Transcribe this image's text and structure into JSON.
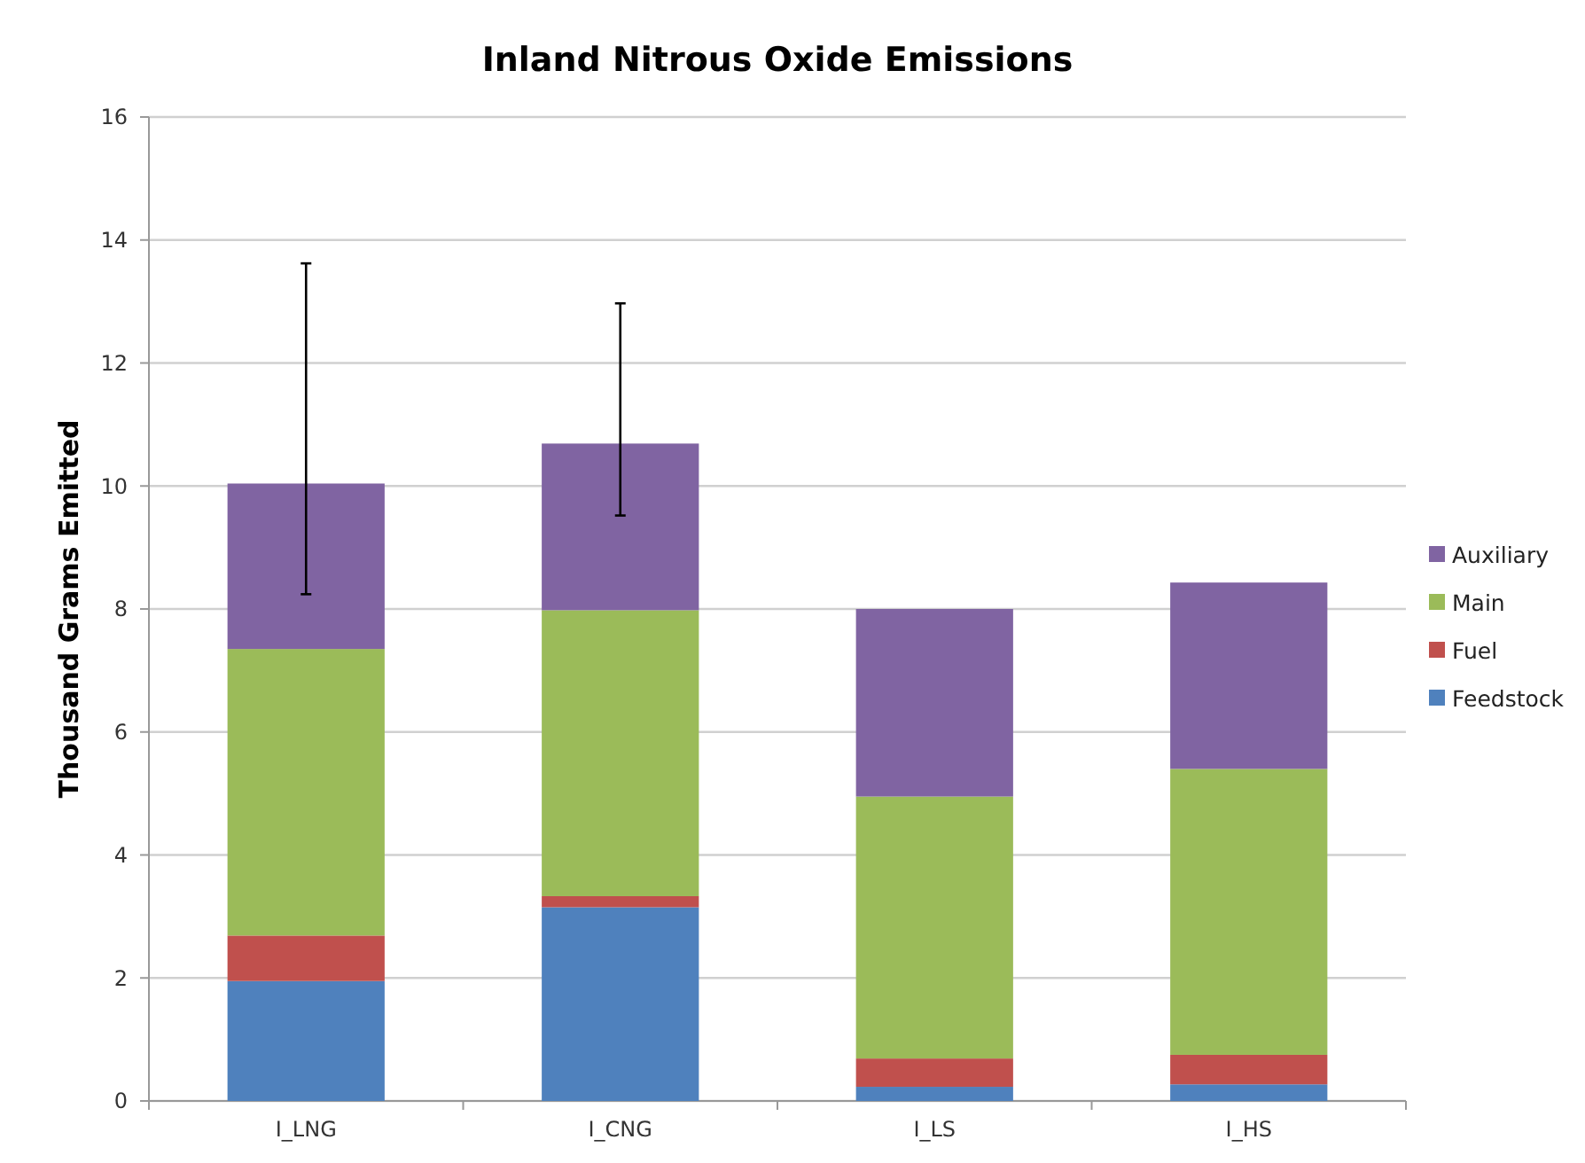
{
  "chart_data": {
    "type": "bar",
    "title": "Inland Nitrous Oxide Emissions",
    "ylabel": "Thousand Grams Emitted",
    "categories": [
      "I_LNG",
      "I_CNG",
      "I_LS",
      "I_HS"
    ],
    "stacked": true,
    "ylim": [
      0,
      16
    ],
    "yticks": [
      0,
      2,
      4,
      6,
      8,
      10,
      12,
      14,
      16
    ],
    "grid": "y",
    "legend": "right",
    "series": [
      {
        "name": "Feedstock",
        "color": "#4f81bd",
        "values": [
          1.95,
          3.15,
          0.23,
          0.27
        ]
      },
      {
        "name": "Fuel",
        "color": "#c0504d",
        "values": [
          0.74,
          0.18,
          0.46,
          0.48
        ]
      },
      {
        "name": "Main",
        "color": "#9bbb59",
        "values": [
          4.66,
          4.65,
          4.26,
          4.65
        ]
      },
      {
        "name": "Auxiliary",
        "color": "#8064a2",
        "values": [
          2.69,
          2.71,
          3.05,
          3.03
        ],
        "errors": [
          [
            8.24,
            13.62
          ],
          [
            9.52,
            12.97
          ],
          null,
          null
        ]
      }
    ]
  }
}
